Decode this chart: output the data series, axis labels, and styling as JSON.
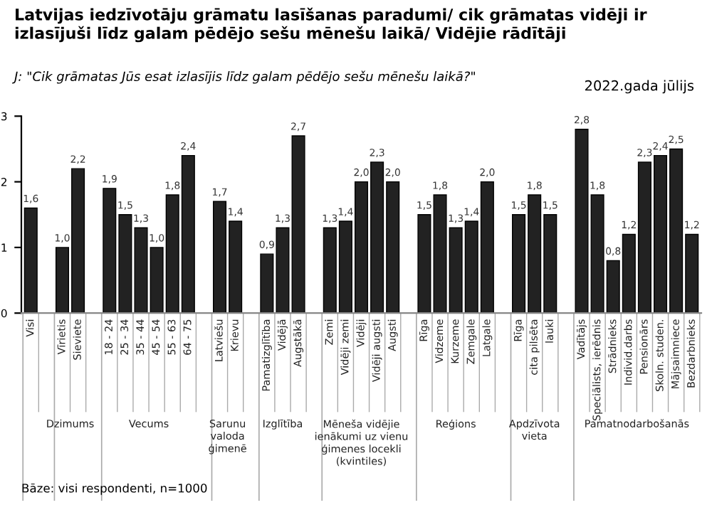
{
  "chart_data": {
    "type": "bar",
    "title": "Latvijas iedzīvotāju grāmatu lasīšanas paradumi/ cik grāmatas vidēji ir izlasījuši līdz galam pēdējo sešu mēnešu laikā/ Vidējie rādītāji",
    "subtitle": "J: \"Cik grāmatas Jūs esat izlasījis līdz galam pēdējo sešu mēnešu laikā?\"",
    "annotations": [
      "2022.gada jūlijs",
      "Bāze: visi respondenti, n=1000",
      "Dzimums",
      "Vecums",
      "Sarunu valoda ģimenē",
      "Izglītība",
      "Mēneša vidējie ienākumi uz vienu ģimenes locekli (kvintiles)",
      "Reģions",
      "Apdzīvota vieta",
      "Pamatnodarbošanās"
    ],
    "categories": [
      "Visi",
      null,
      "Vīrietis",
      "Sieviete",
      null,
      "18 - 24",
      "25 - 34",
      "35 - 44",
      "45 - 54",
      "55 - 63",
      "64 - 75",
      null,
      "Latviešu",
      "Krievu",
      null,
      "Pamatizglītība",
      "Vidējā",
      "Augstākā",
      null,
      "Zemi",
      "Vidēji zemi",
      "Vidēji",
      "Vidēji augsti",
      "Augsti",
      null,
      "Rīga",
      "Vidzeme",
      "Kurzeme",
      "Zemgale",
      "Latgale",
      null,
      "Rīga",
      "cita pilsēta",
      "lauki",
      null,
      "Vadītājs",
      "Speciālists, ierēdnis",
      "Strādnieks",
      "Individ.darbs",
      "Pensionārs",
      "Skoln. studen.",
      "Mājsaimniece",
      "Bezdarbnieks"
    ],
    "values": [
      1.6,
      null,
      1.0,
      2.2,
      null,
      1.9,
      1.5,
      1.3,
      1.0,
      1.8,
      2.4,
      null,
      1.7,
      1.4,
      null,
      0.9,
      1.3,
      2.7,
      null,
      1.3,
      1.4,
      2.0,
      2.3,
      2.0,
      null,
      1.5,
      1.8,
      1.3,
      1.4,
      2.0,
      null,
      1.5,
      1.8,
      1.5,
      null,
      2.8,
      1.8,
      0.8,
      1.2,
      2.3,
      2.4,
      2.5,
      1.2
    ],
    "value_labels": [
      "1,6",
      null,
      "1,0",
      "2,2",
      null,
      "1,9",
      "1,5",
      "1,3",
      "1,0",
      "1,8",
      "2,4",
      null,
      "1,7",
      "1,4",
      null,
      "0,9",
      "1,3",
      "2,7",
      null,
      "1,3",
      "1,4",
      "2,0",
      "2,3",
      "2,0",
      null,
      "1,5",
      "1,8",
      "1,3",
      "1,4",
      "2,0",
      null,
      "1,5",
      "1,8",
      "1,5",
      null,
      "2,8",
      "1,8",
      "0,8",
      "1,2",
      "2,3",
      "2,4",
      "2,5",
      "1,2"
    ],
    "color": "#222222",
    "ylim": [
      0,
      3
    ],
    "yticks": [
      0,
      1,
      2,
      3
    ],
    "grid": false
  }
}
